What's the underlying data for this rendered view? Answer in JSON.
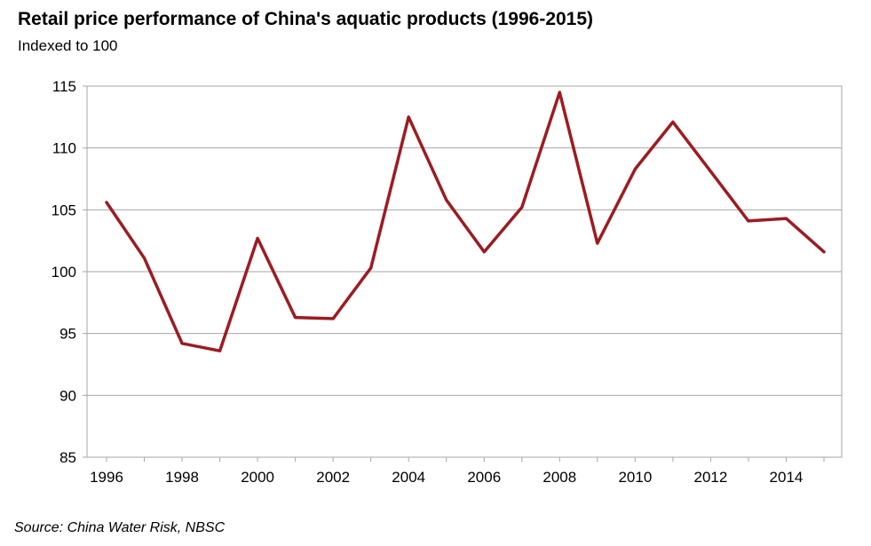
{
  "chart_data": {
    "type": "line",
    "title": "Retail price performance of China's aquatic products (1996-2015)",
    "subtitle": "Indexed to 100",
    "source": "Source: China Water Risk, NBSC",
    "x": [
      1996,
      1997,
      1998,
      1999,
      2000,
      2001,
      2002,
      2003,
      2004,
      2005,
      2006,
      2007,
      2008,
      2009,
      2010,
      2011,
      2012,
      2013,
      2014,
      2015
    ],
    "series": [
      {
        "values": [
          105.6,
          101.1,
          94.2,
          93.6,
          102.7,
          96.3,
          96.2,
          100.3,
          112.5,
          105.8,
          101.6,
          105.2,
          114.5,
          102.3,
          108.3,
          112.1,
          108.1,
          104.1,
          104.3,
          101.6
        ]
      }
    ],
    "xticks": [
      "1996",
      "1998",
      "2000",
      "2002",
      "2004",
      "2006",
      "2008",
      "2010",
      "2012",
      "2014"
    ],
    "yticks": [
      "85",
      "90",
      "95",
      "100",
      "105",
      "110",
      "115"
    ],
    "ylim": [
      85,
      115
    ],
    "xlim": [
      1996,
      2015
    ],
    "grid": true,
    "legend": "none",
    "line_color": "#9b1c22",
    "grid_color": "#a6a6a6"
  }
}
